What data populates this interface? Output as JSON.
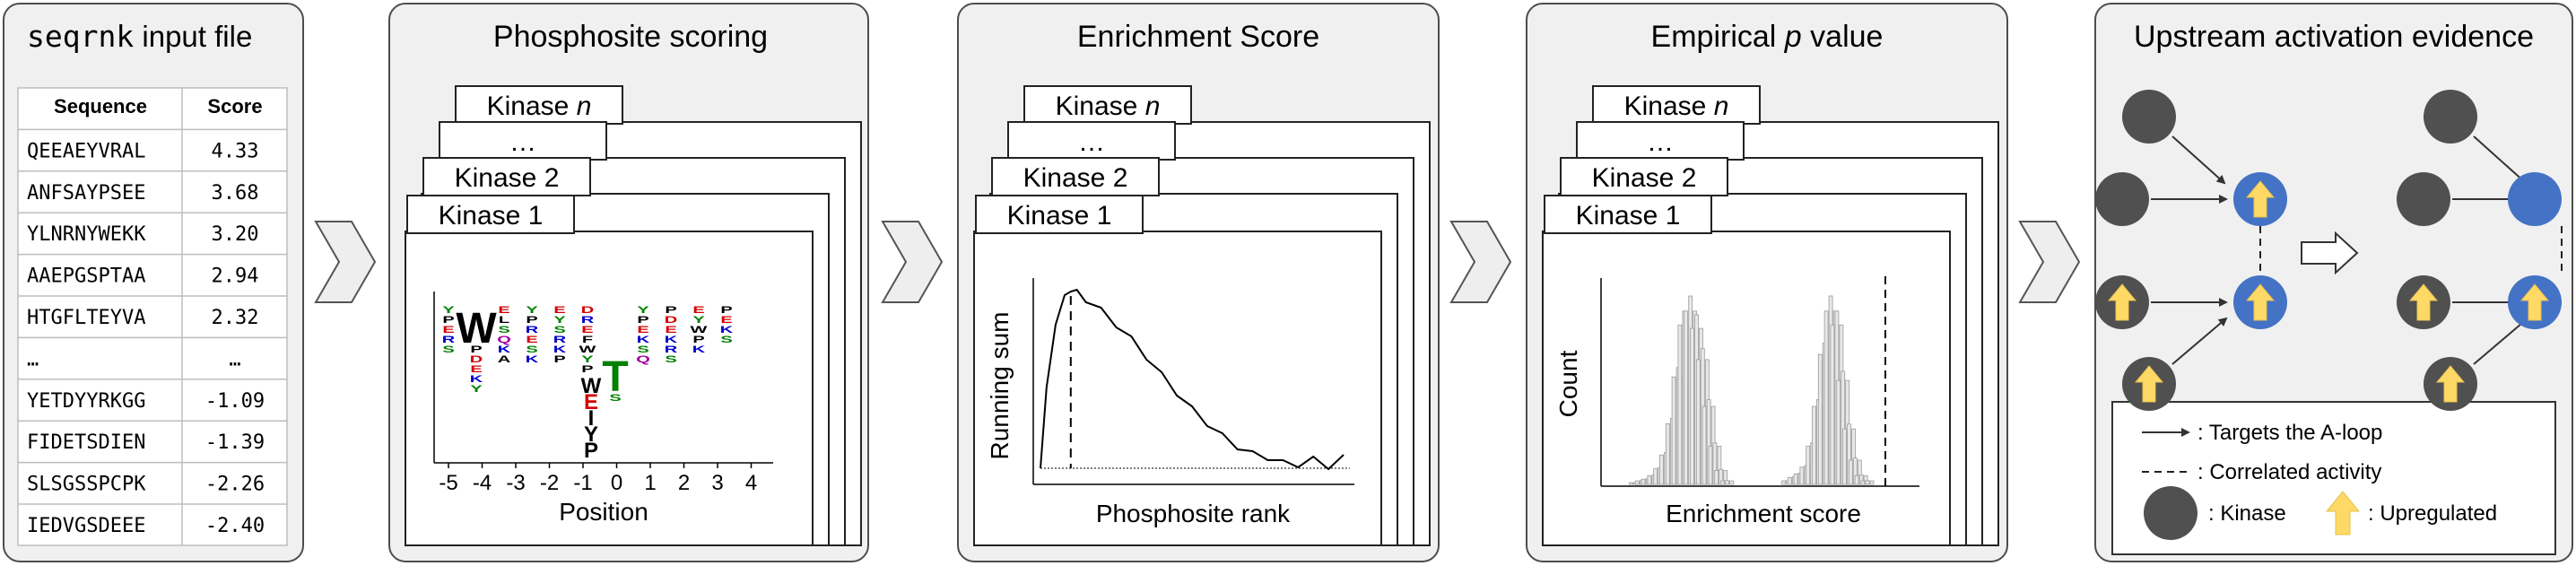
{
  "input": {
    "title_mono": "seqrnk",
    "title_rest": " input file",
    "headers": [
      "Sequence",
      "Score"
    ],
    "rows": [
      [
        "QEEAEYVRAL",
        "4.33"
      ],
      [
        "ANFSAYPSEE",
        "3.68"
      ],
      [
        "YLNRNYWEKK",
        "3.20"
      ],
      [
        "AAEPGSPTAA",
        "2.94"
      ],
      [
        "HTGFLTEYVA",
        "2.32"
      ],
      [
        "…",
        "…"
      ],
      [
        "YETDYYRKGG",
        "-1.09"
      ],
      [
        "FIDETSDIEN",
        "-1.39"
      ],
      [
        "SLSGSSPCPK",
        "-2.26"
      ],
      [
        "IEDVGSDEEE",
        "-2.40"
      ]
    ]
  },
  "kinase_tabs": [
    "Kinase n",
    "…",
    "Kinase 2",
    "Kinase 1"
  ],
  "scoring": {
    "title": "Phosphosite scoring",
    "xlabel": "Position",
    "ticks": [
      "-5",
      "-4",
      "-3",
      "-2",
      "-1",
      "0",
      "1",
      "2",
      "3",
      "4"
    ]
  },
  "enrichment": {
    "title": "Enrichment Score",
    "xlabel": "Phosphosite rank",
    "ylabel": "Running sum"
  },
  "pvalue": {
    "title_pre": "Empirical ",
    "title_italic": "p",
    "title_post": " value",
    "xlabel": "Enrichment score",
    "ylabel": "Count"
  },
  "upstream": {
    "title": "Upstream activation evidence",
    "legend": {
      "targets": "Targets the A-loop",
      "correlated": "Correlated activity",
      "kinase": "Kinase",
      "upregulated": "Upregulated"
    }
  },
  "colors": {
    "node_gray": "#505050",
    "node_blue": "#4472c4",
    "arrow_yellow": "#ffd966",
    "panel_bg": "#f0f0f0"
  },
  "chart_data": [
    {
      "type": "line",
      "title": "Enrichment Score",
      "xlabel": "Phosphosite rank",
      "ylabel": "Running sum",
      "series": [
        {
          "x": [
            0,
            0.02,
            0.05,
            0.08,
            0.1,
            0.12,
            0.15,
            0.2,
            0.25,
            0.3,
            0.35,
            0.4,
            0.45,
            0.5,
            0.55,
            0.6,
            0.65,
            0.7,
            0.75,
            0.8,
            0.85,
            0.9,
            0.95,
            1.0
          ],
          "values": [
            0.0,
            0.45,
            0.8,
            0.95,
            1.0,
            0.98,
            0.94,
            0.88,
            0.8,
            0.72,
            0.62,
            0.52,
            0.42,
            0.33,
            0.25,
            0.18,
            0.12,
            0.08,
            0.06,
            0.03,
            0.02,
            0.05,
            0.01,
            0.06
          ]
        }
      ]
    },
    {
      "type": "bar",
      "title": "Empirical p value",
      "xlabel": "Enrichment score",
      "ylabel": "Count",
      "series": [
        {
          "x": [
            0.1,
            0.12,
            0.14,
            0.16,
            0.18,
            0.2,
            0.22,
            0.24,
            0.26,
            0.28,
            0.3,
            0.32,
            0.34,
            0.36,
            0.38,
            0.4
          ],
          "values": [
            1,
            2,
            3,
            5,
            9,
            17,
            35,
            62,
            92,
            100,
            90,
            72,
            45,
            22,
            8,
            2
          ]
        },
        {
          "x": [
            0.6,
            0.62,
            0.64,
            0.66,
            0.68,
            0.7,
            0.72,
            0.74,
            0.76,
            0.78,
            0.8,
            0.82,
            0.84,
            0.86
          ],
          "values": [
            2,
            4,
            6,
            10,
            22,
            45,
            75,
            100,
            92,
            60,
            32,
            14,
            5,
            2
          ]
        }
      ]
    }
  ]
}
